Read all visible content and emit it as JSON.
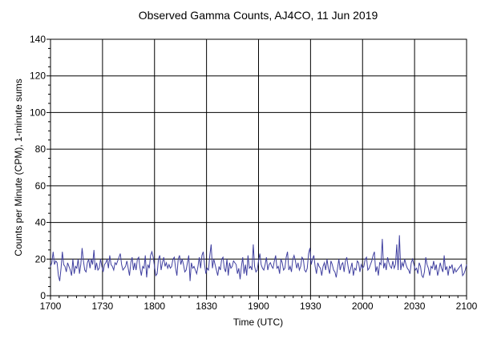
{
  "chart_data": {
    "type": "line",
    "title": "Observed Gamma Counts, AJ4CO, 11 Jun 2019",
    "xlabel": "Time (UTC)",
    "ylabel": "Counts per Minute (CPM), 1-minute sums",
    "x_start": "1700",
    "x_end": "2100",
    "x_tick_labels": [
      "1700",
      "1730",
      "1800",
      "1830",
      "1900",
      "1930",
      "2000",
      "2030",
      "2100"
    ],
    "y_tick_values": [
      0,
      20,
      40,
      60,
      80,
      100,
      120,
      140
    ],
    "ylim": [
      0,
      140
    ],
    "grid": true,
    "line_color": "#4040a0",
    "series": [
      {
        "values": [
          16,
          18,
          24,
          17,
          19,
          18,
          11,
          8,
          15,
          24,
          17,
          16,
          13,
          18,
          16,
          14,
          11,
          20,
          12,
          16,
          15,
          20,
          12,
          17,
          26,
          19,
          14,
          13,
          18,
          20,
          15,
          20,
          17,
          25,
          14,
          18,
          14,
          15,
          20,
          16,
          13,
          17,
          18,
          20,
          15,
          22,
          17,
          16,
          14,
          18,
          17,
          19,
          21,
          23,
          17,
          14,
          15,
          16,
          19,
          15,
          11,
          18,
          21,
          14,
          18,
          14,
          20,
          21,
          15,
          11,
          16,
          15,
          22,
          10,
          17,
          15,
          22,
          24,
          21,
          16,
          11,
          12,
          20,
          22,
          14,
          18,
          21,
          16,
          18,
          15,
          17,
          15,
          16,
          20,
          21,
          15,
          11,
          20,
          22,
          17,
          20,
          17,
          13,
          14,
          18,
          22,
          8,
          18,
          15,
          16,
          14,
          12,
          16,
          21,
          15,
          22,
          24,
          17,
          12,
          15,
          14,
          22,
          28,
          15,
          20,
          17,
          14,
          11,
          16,
          14,
          20,
          21,
          15,
          13,
          20,
          11,
          18,
          15,
          16,
          19,
          18,
          17,
          12,
          15,
          9,
          16,
          21,
          12,
          17,
          11,
          22,
          15,
          16,
          14,
          28,
          16,
          13,
          14,
          19,
          23,
          17,
          15,
          14,
          17,
          21,
          14,
          17,
          18,
          16,
          15,
          19,
          22,
          15,
          16,
          12,
          20,
          18,
          14,
          15,
          21,
          24,
          14,
          16,
          13,
          20,
          22,
          19,
          15,
          18,
          14,
          16,
          21,
          20,
          14,
          13,
          15,
          23,
          26,
          17,
          20,
          22,
          16,
          12,
          18,
          16,
          15,
          11,
          16,
          18,
          14,
          20,
          15,
          12,
          19,
          17,
          14,
          13,
          10,
          15,
          20,
          14,
          17,
          18,
          13,
          19,
          21,
          16,
          12,
          15,
          18,
          11,
          15,
          14,
          19,
          18,
          13,
          17,
          15,
          16,
          20,
          21,
          14,
          15,
          17,
          19,
          22,
          24,
          13,
          16,
          11,
          18,
          17,
          31,
          15,
          18,
          14,
          21,
          18,
          16,
          15,
          19,
          15,
          17,
          28,
          14,
          33,
          14,
          18,
          16,
          20,
          17,
          15,
          14,
          12,
          18,
          20,
          17,
          14,
          15,
          12,
          18,
          16,
          11,
          10,
          13,
          21,
          17,
          15,
          11,
          16,
          15,
          19,
          14,
          17,
          11,
          14,
          18,
          15,
          13,
          22,
          14,
          16,
          11,
          16,
          15,
          17,
          12,
          15,
          13,
          14,
          15,
          16,
          17,
          11,
          12,
          14,
          17
        ]
      }
    ]
  }
}
